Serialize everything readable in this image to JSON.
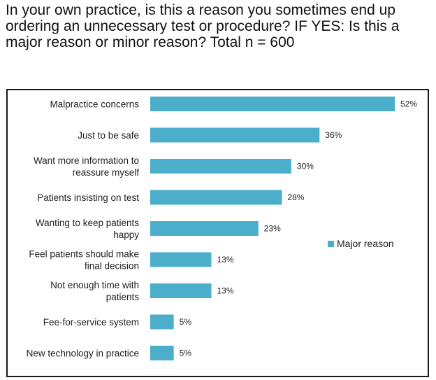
{
  "question": "In your own practice, is this a reason you sometimes end up ordering an unnecessary test or procedure? IF YES: Is this a major reason or minor reason? Total n = 600",
  "chart_data": {
    "type": "bar",
    "orientation": "horizontal",
    "categories": [
      [
        "Malpractice concerns"
      ],
      [
        "Just to be safe"
      ],
      [
        "Want more information to",
        "reassure myself"
      ],
      [
        "Patients insisting on test"
      ],
      [
        "Wanting to keep patients",
        "happy"
      ],
      [
        "Feel patients should make",
        "final decision"
      ],
      [
        "Not enough time with",
        "patients"
      ],
      [
        "Fee-for-service system"
      ],
      [
        "New technology in practice"
      ]
    ],
    "series": [
      {
        "name": "Major reason",
        "values": [
          52,
          36,
          30,
          28,
          23,
          13,
          13,
          5,
          5
        ],
        "labels": [
          "52%",
          "36%",
          "30%",
          "28%",
          "23%",
          "13%",
          "13%",
          "5%",
          "5%"
        ],
        "color": "#4bafcc"
      }
    ],
    "xlim": [
      0,
      52
    ],
    "unit": "%",
    "legend_position": "right",
    "grid": false
  }
}
